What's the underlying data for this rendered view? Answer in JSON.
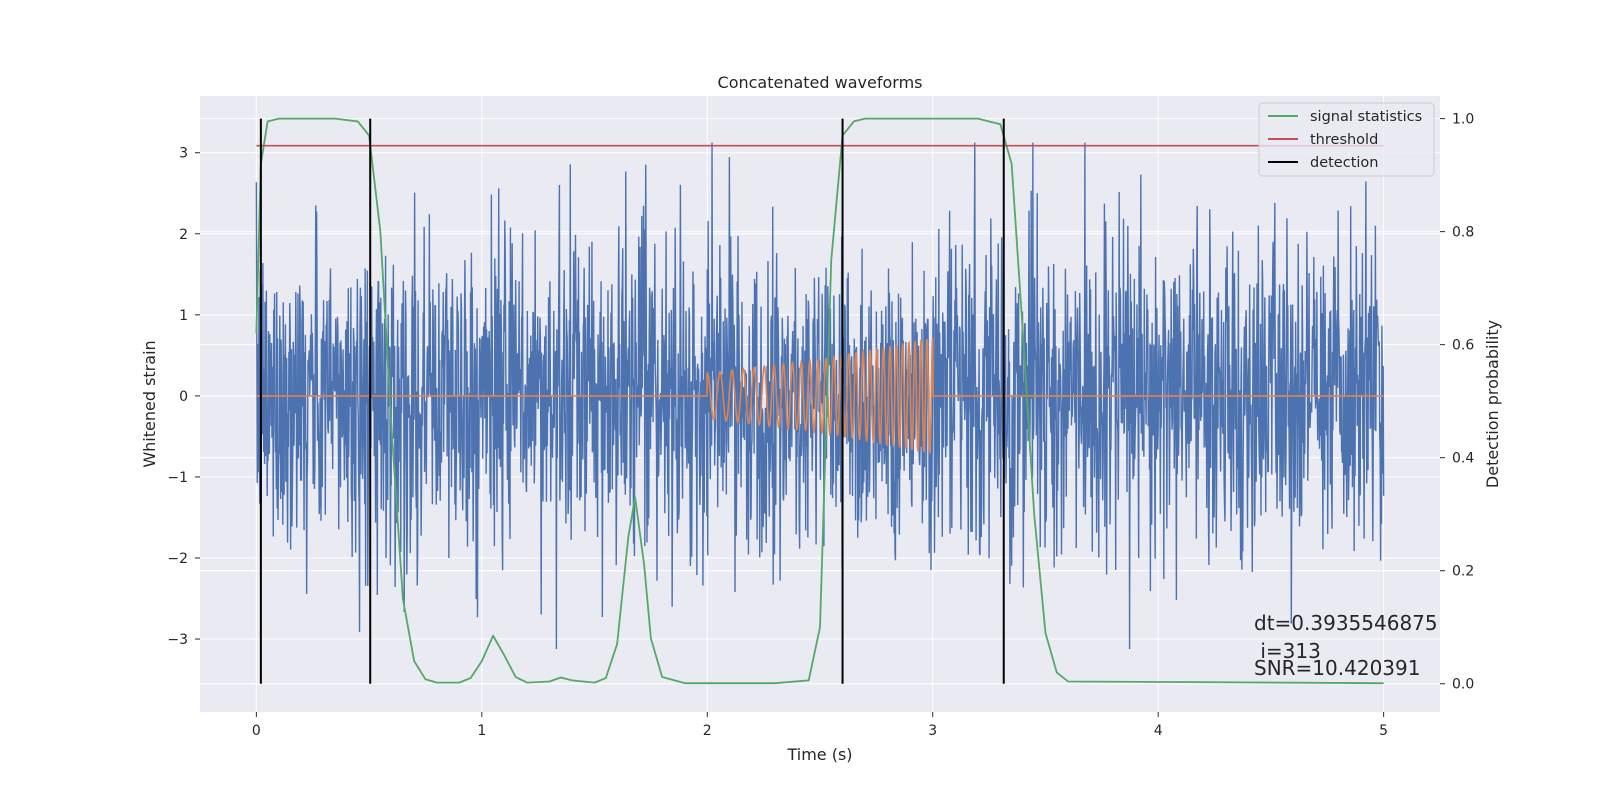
{
  "chart_data": {
    "type": "line",
    "title": "Concatenated waveforms",
    "xlabel": "Time (s)",
    "ylabel": "Whitened strain",
    "y2label": "Detection probability",
    "xlim": [
      -0.25,
      5.25
    ],
    "ylim": [
      -3.9,
      3.7
    ],
    "y2lim": [
      -0.05,
      1.04
    ],
    "x_ticks": [
      0,
      1,
      2,
      3,
      4,
      5
    ],
    "y_ticks": [
      -3,
      -2,
      -1,
      0,
      1,
      2,
      3
    ],
    "y2_ticks": [
      0.0,
      0.2,
      0.4,
      0.6,
      0.8,
      1.0
    ],
    "x_tick_labels": [
      "0",
      "1",
      "2",
      "3",
      "4",
      "5"
    ],
    "y_tick_labels": [
      "−3",
      "−2",
      "−1",
      "0",
      "1",
      "2",
      "3"
    ],
    "y2_tick_labels": [
      "0.0",
      "0.2",
      "0.4",
      "0.6",
      "0.8",
      "1.0"
    ],
    "grid": true,
    "legend_position": "top-right",
    "colors": {
      "strain": "#4c72b0",
      "template": "#dd8452",
      "signal_statistics": "#55a868",
      "threshold": "#c44e52",
      "detection": "#000000",
      "plot_bg": "#eaeaf2",
      "grid": "#ffffff"
    },
    "series": [
      {
        "name": "",
        "axis": "left",
        "description_kind": "noise",
        "x_range": [
          0,
          5
        ],
        "envelope": 2.5
      },
      {
        "name": "",
        "axis": "left",
        "description_kind": "chirp",
        "x": [
          0,
          2,
          2.5,
          3,
          3.01,
          5
        ],
        "amplitude": [
          0,
          0.28,
          0.45,
          0.72,
          0,
          0
        ]
      },
      {
        "name": "signal statistics",
        "axis": "right",
        "x": [
          0,
          0.02,
          0.05,
          0.1,
          0.35,
          0.45,
          0.5,
          0.55,
          0.6,
          0.65,
          0.7,
          0.75,
          0.8,
          0.9,
          0.95,
          1.0,
          1.05,
          1.1,
          1.15,
          1.2,
          1.3,
          1.35,
          1.4,
          1.5,
          1.55,
          1.6,
          1.65,
          1.68,
          1.72,
          1.75,
          1.8,
          1.9,
          2.0,
          2.3,
          2.45,
          2.5,
          2.55,
          2.6,
          2.65,
          2.7,
          3.2,
          3.3,
          3.35,
          3.4,
          3.45,
          3.5,
          3.55,
          3.6,
          5.0
        ],
        "values": [
          0.62,
          0.92,
          0.995,
          1.0,
          1.0,
          0.995,
          0.97,
          0.8,
          0.45,
          0.15,
          0.04,
          0.008,
          0.002,
          0.002,
          0.01,
          0.04,
          0.085,
          0.05,
          0.012,
          0.002,
          0.004,
          0.011,
          0.006,
          0.002,
          0.01,
          0.07,
          0.26,
          0.33,
          0.21,
          0.08,
          0.012,
          0.001,
          0.001,
          0.001,
          0.006,
          0.1,
          0.75,
          0.97,
          0.995,
          1.0,
          1.0,
          0.99,
          0.92,
          0.62,
          0.3,
          0.09,
          0.02,
          0.004,
          0.001
        ]
      },
      {
        "name": "threshold",
        "axis": "right",
        "x": [
          0,
          5
        ],
        "values": [
          0.952,
          0.952
        ]
      },
      {
        "name": "detection",
        "axis": "right",
        "type": "vlines",
        "x": [
          0.02,
          0.505,
          2.6,
          3.315
        ],
        "range": [
          0.0,
          1.0
        ]
      }
    ],
    "annotations": {
      "dt": "dt=0.3935546875",
      "i": " i=313",
      "snr": "SNR=10.420391"
    }
  }
}
